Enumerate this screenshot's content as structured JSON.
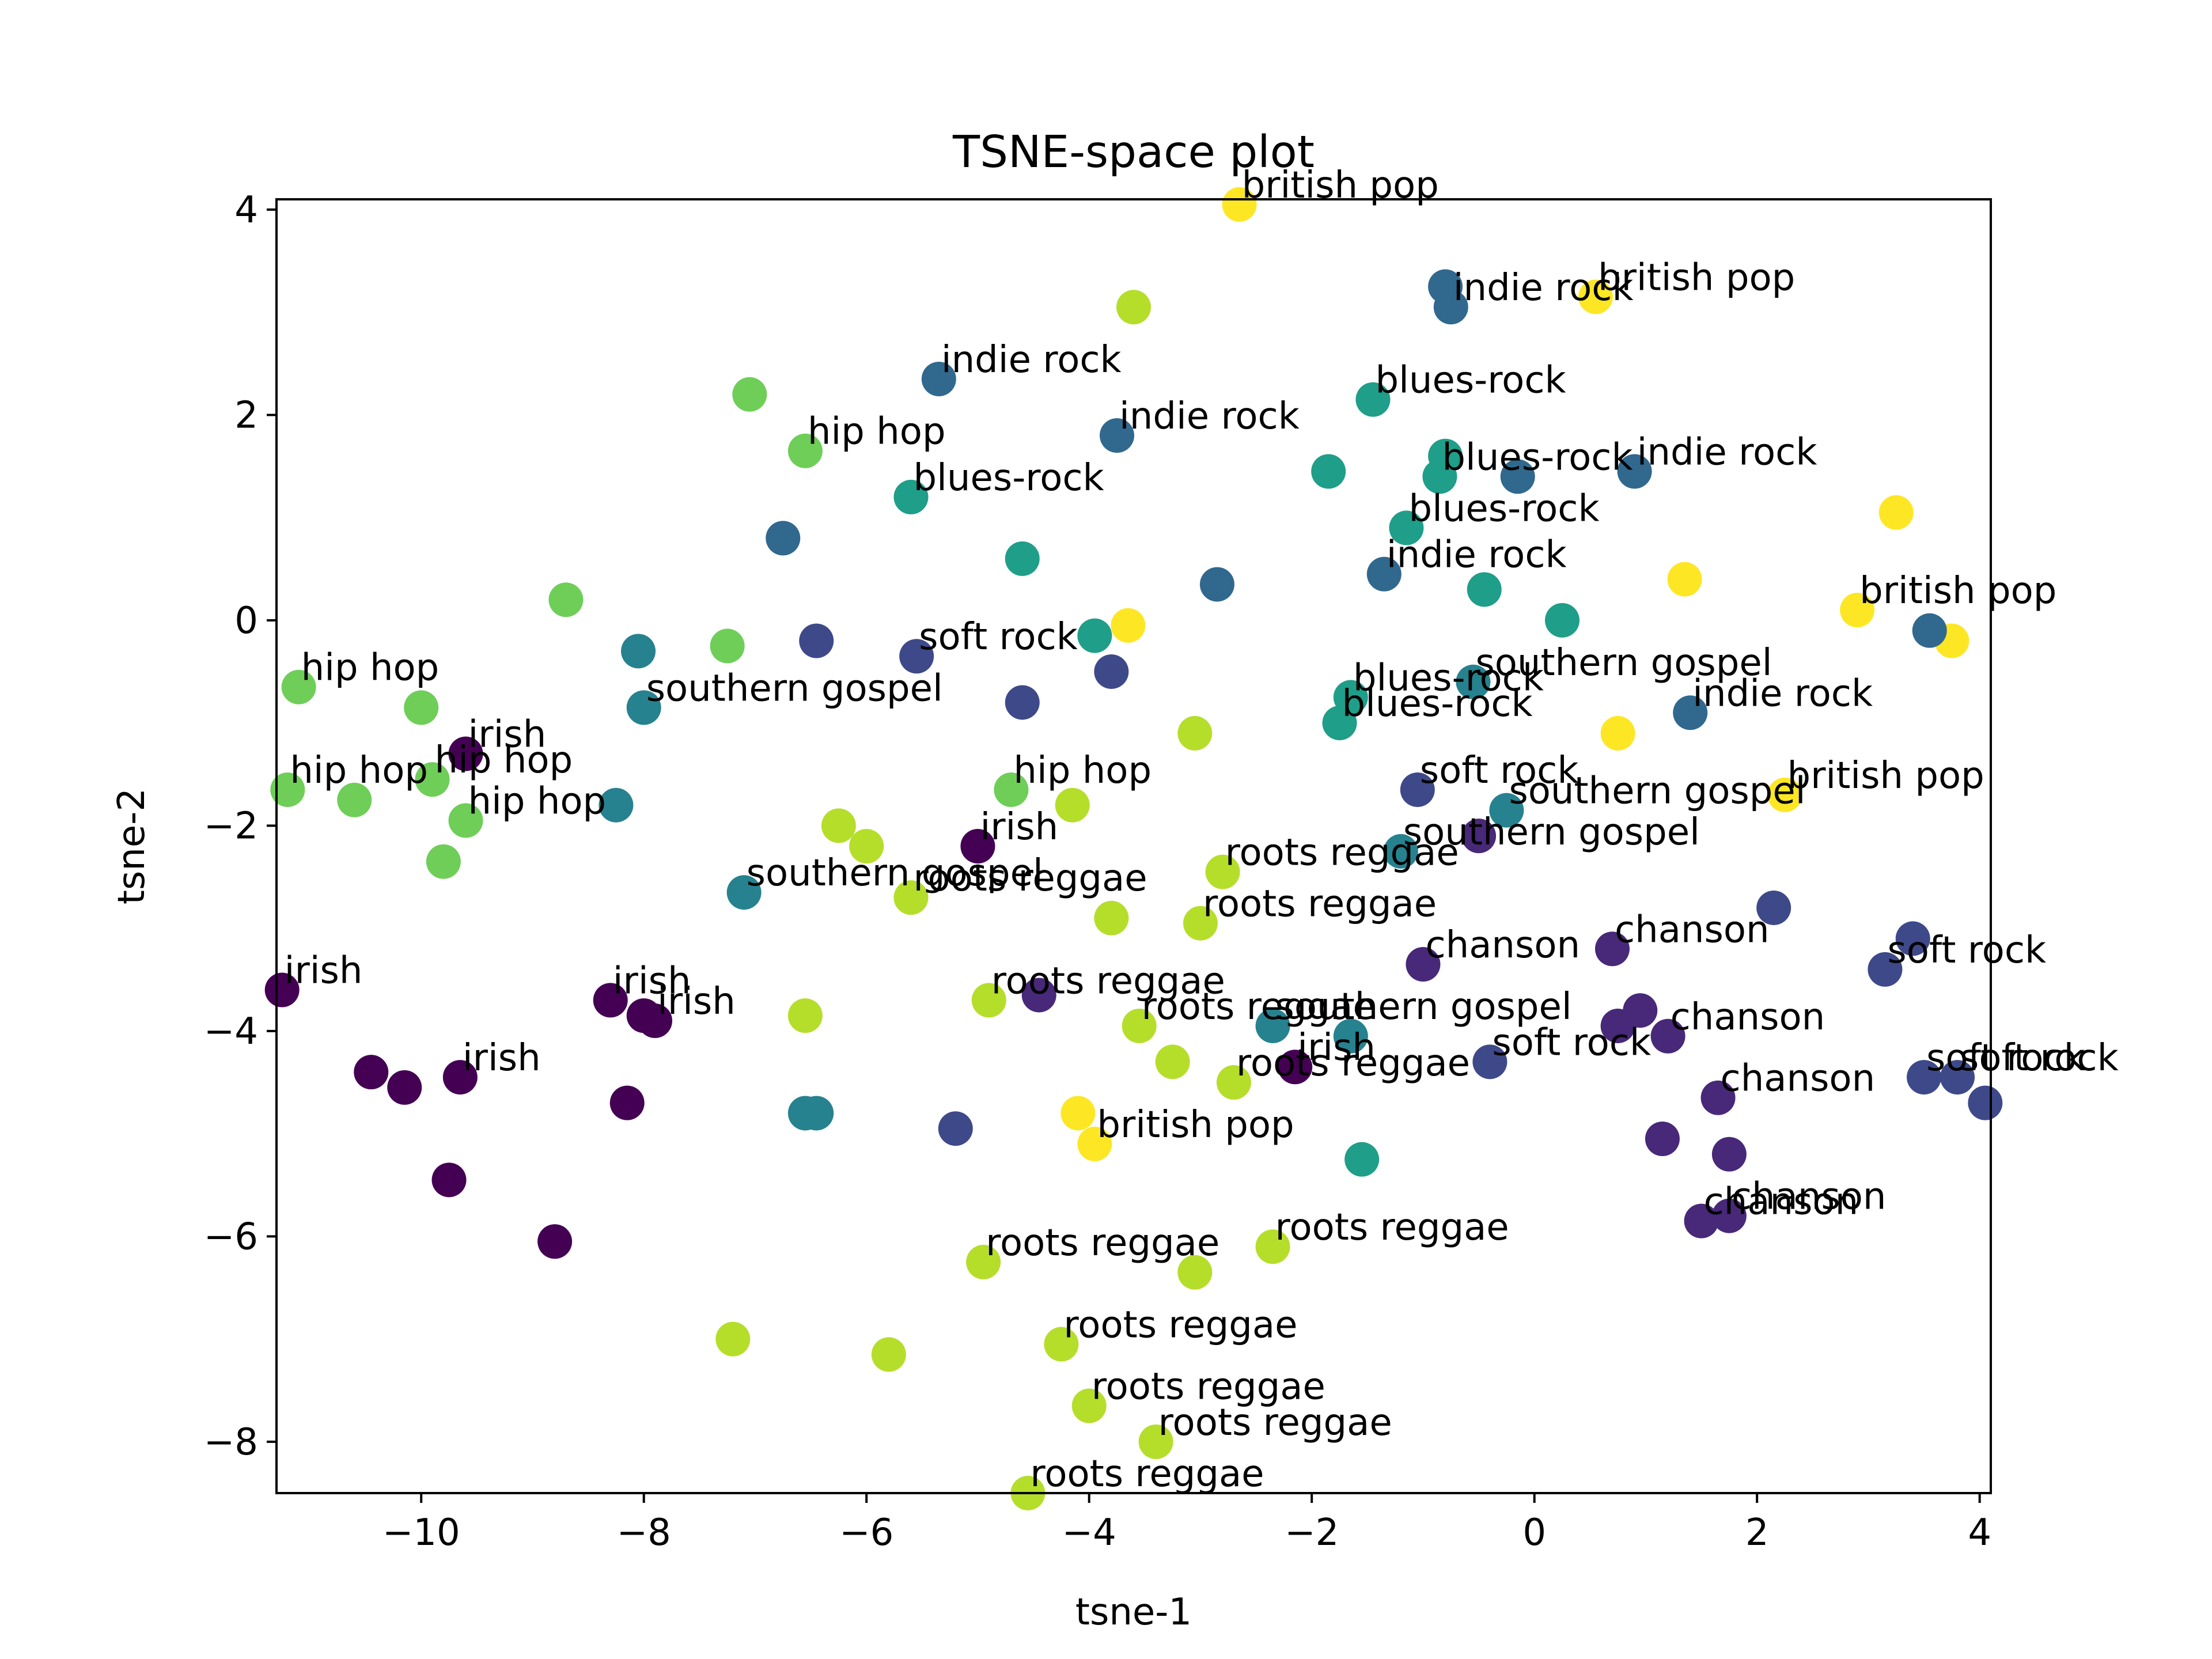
{
  "chart_data": {
    "type": "scatter",
    "title": "TSNE-space plot",
    "xlabel": "tsne-1",
    "ylabel": "tsne-2",
    "xlim": [
      -11.3,
      4.1
    ],
    "ylim": [
      -8.5,
      4.1
    ],
    "xticks": [
      -10,
      -8,
      -6,
      -4,
      -2,
      0,
      2,
      4
    ],
    "yticks": [
      -8,
      -6,
      -4,
      -2,
      0,
      2,
      4
    ],
    "grid": false,
    "colormap": "viridis",
    "genre_colors": {
      "irish": "#440154",
      "chanson": "#482878",
      "soft rock": "#3e4989",
      "indie rock": "#31688e",
      "southern gospel": "#26828e",
      "blues-rock": "#1f9e89",
      "hip hop": "#6ece58",
      "roots reggae": "#b5de2b",
      "british pop": "#fde725"
    },
    "points": [
      {
        "x": -2.65,
        "y": 4.05,
        "c": "#fde725",
        "label": "british pop"
      },
      {
        "x": 0.55,
        "y": 3.15,
        "c": "#fde725",
        "label": "british pop"
      },
      {
        "x": 3.25,
        "y": 1.05,
        "c": "#fde725",
        "label": ""
      },
      {
        "x": 1.35,
        "y": 0.4,
        "c": "#fde725",
        "label": ""
      },
      {
        "x": 2.9,
        "y": 0.1,
        "c": "#fde725",
        "label": "british pop"
      },
      {
        "x": 3.75,
        "y": -0.2,
        "c": "#fde725",
        "label": ""
      },
      {
        "x": -3.65,
        "y": -0.05,
        "c": "#fde725",
        "label": ""
      },
      {
        "x": 0.75,
        "y": -1.1,
        "c": "#fde725",
        "label": ""
      },
      {
        "x": 2.25,
        "y": -1.7,
        "c": "#fde725",
        "label": "british pop"
      },
      {
        "x": -4.1,
        "y": -4.8,
        "c": "#fde725",
        "label": ""
      },
      {
        "x": -3.95,
        "y": -5.1,
        "c": "#fde725",
        "label": "british pop"
      },
      {
        "x": -0.8,
        "y": 3.25,
        "c": "#31688e",
        "label": ""
      },
      {
        "x": -0.75,
        "y": 3.05,
        "c": "#31688e",
        "label": "indie rock"
      },
      {
        "x": -5.35,
        "y": 2.35,
        "c": "#31688e",
        "label": "indie rock"
      },
      {
        "x": -3.75,
        "y": 1.8,
        "c": "#31688e",
        "label": "indie rock"
      },
      {
        "x": 0.9,
        "y": 1.45,
        "c": "#31688e",
        "label": "indie rock"
      },
      {
        "x": -0.15,
        "y": 1.4,
        "c": "#31688e",
        "label": ""
      },
      {
        "x": -6.75,
        "y": 0.8,
        "c": "#31688e",
        "label": ""
      },
      {
        "x": -2.85,
        "y": 0.35,
        "c": "#31688e",
        "label": ""
      },
      {
        "x": -1.35,
        "y": 0.45,
        "c": "#31688e",
        "label": "indie rock"
      },
      {
        "x": 3.55,
        "y": -0.1,
        "c": "#31688e",
        "label": ""
      },
      {
        "x": 1.4,
        "y": -0.9,
        "c": "#31688e",
        "label": "indie rock"
      },
      {
        "x": -1.45,
        "y": 2.15,
        "c": "#1f9e89",
        "label": "blues-rock"
      },
      {
        "x": -1.85,
        "y": 1.45,
        "c": "#1f9e89",
        "label": ""
      },
      {
        "x": -0.8,
        "y": 1.6,
        "c": "#1f9e89",
        "label": ""
      },
      {
        "x": -0.85,
        "y": 1.4,
        "c": "#1f9e89",
        "label": "blues-rock"
      },
      {
        "x": -5.6,
        "y": 1.2,
        "c": "#1f9e89",
        "label": "blues-rock"
      },
      {
        "x": -1.15,
        "y": 0.9,
        "c": "#1f9e89",
        "label": "blues-rock"
      },
      {
        "x": -4.6,
        "y": 0.6,
        "c": "#1f9e89",
        "label": ""
      },
      {
        "x": -0.45,
        "y": 0.3,
        "c": "#1f9e89",
        "label": ""
      },
      {
        "x": 0.25,
        "y": 0.0,
        "c": "#1f9e89",
        "label": ""
      },
      {
        "x": -3.95,
        "y": -0.15,
        "c": "#1f9e89",
        "label": ""
      },
      {
        "x": -1.65,
        "y": -0.75,
        "c": "#1f9e89",
        "label": "blues-rock"
      },
      {
        "x": -1.75,
        "y": -1.0,
        "c": "#1f9e89",
        "label": "blues-rock"
      },
      {
        "x": -1.55,
        "y": -5.25,
        "c": "#1f9e89",
        "label": ""
      },
      {
        "x": -7.05,
        "y": 2.2,
        "c": "#6ece58",
        "label": ""
      },
      {
        "x": -6.55,
        "y": 1.65,
        "c": "#6ece58",
        "label": "hip hop"
      },
      {
        "x": -8.7,
        "y": 0.2,
        "c": "#6ece58",
        "label": ""
      },
      {
        "x": -7.25,
        "y": -0.25,
        "c": "#6ece58",
        "label": ""
      },
      {
        "x": -11.1,
        "y": -0.65,
        "c": "#6ece58",
        "label": "hip hop"
      },
      {
        "x": -10.0,
        "y": -0.85,
        "c": "#6ece58",
        "label": ""
      },
      {
        "x": -11.2,
        "y": -1.65,
        "c": "#6ece58",
        "label": "hip hop"
      },
      {
        "x": -10.6,
        "y": -1.75,
        "c": "#6ece58",
        "label": ""
      },
      {
        "x": -9.9,
        "y": -1.55,
        "c": "#6ece58",
        "label": "hip hop"
      },
      {
        "x": -9.6,
        "y": -1.95,
        "c": "#6ece58",
        "label": "hip hop"
      },
      {
        "x": -9.8,
        "y": -2.35,
        "c": "#6ece58",
        "label": ""
      },
      {
        "x": -4.7,
        "y": -1.65,
        "c": "#6ece58",
        "label": "hip hop"
      },
      {
        "x": -3.6,
        "y": 3.05,
        "c": "#b5de2b",
        "label": ""
      },
      {
        "x": -3.05,
        "y": -1.1,
        "c": "#b5de2b",
        "label": ""
      },
      {
        "x": -4.15,
        "y": -1.8,
        "c": "#b5de2b",
        "label": ""
      },
      {
        "x": -6.25,
        "y": -2.0,
        "c": "#b5de2b",
        "label": ""
      },
      {
        "x": -6.0,
        "y": -2.2,
        "c": "#b5de2b",
        "label": ""
      },
      {
        "x": -2.8,
        "y": -2.45,
        "c": "#b5de2b",
        "label": "roots reggae"
      },
      {
        "x": -5.6,
        "y": -2.7,
        "c": "#b5de2b",
        "label": "roots reggae"
      },
      {
        "x": -3.8,
        "y": -2.9,
        "c": "#b5de2b",
        "label": ""
      },
      {
        "x": -3.0,
        "y": -2.95,
        "c": "#b5de2b",
        "label": "roots reggae"
      },
      {
        "x": -4.9,
        "y": -3.7,
        "c": "#b5de2b",
        "label": "roots reggae"
      },
      {
        "x": -6.55,
        "y": -3.85,
        "c": "#b5de2b",
        "label": ""
      },
      {
        "x": -3.55,
        "y": -3.95,
        "c": "#b5de2b",
        "label": "roots reggae"
      },
      {
        "x": -3.25,
        "y": -4.3,
        "c": "#b5de2b",
        "label": ""
      },
      {
        "x": -2.7,
        "y": -4.5,
        "c": "#b5de2b",
        "label": "roots reggae"
      },
      {
        "x": -2.35,
        "y": -6.1,
        "c": "#b5de2b",
        "label": "roots reggae"
      },
      {
        "x": -4.95,
        "y": -6.25,
        "c": "#b5de2b",
        "label": "roots reggae"
      },
      {
        "x": -3.05,
        "y": -6.35,
        "c": "#b5de2b",
        "label": ""
      },
      {
        "x": -7.2,
        "y": -7.0,
        "c": "#b5de2b",
        "label": ""
      },
      {
        "x": -5.8,
        "y": -7.15,
        "c": "#b5de2b",
        "label": ""
      },
      {
        "x": -4.25,
        "y": -7.05,
        "c": "#b5de2b",
        "label": "roots reggae"
      },
      {
        "x": -4.0,
        "y": -7.65,
        "c": "#b5de2b",
        "label": "roots reggae"
      },
      {
        "x": -3.4,
        "y": -8.0,
        "c": "#b5de2b",
        "label": "roots reggae"
      },
      {
        "x": -4.55,
        "y": -8.5,
        "c": "#b5de2b",
        "label": "roots reggae"
      },
      {
        "x": -8.05,
        "y": -0.3,
        "c": "#26828e",
        "label": ""
      },
      {
        "x": -8.0,
        "y": -0.85,
        "c": "#26828e",
        "label": "southern gospel"
      },
      {
        "x": -8.25,
        "y": -1.8,
        "c": "#26828e",
        "label": ""
      },
      {
        "x": -7.1,
        "y": -2.65,
        "c": "#26828e",
        "label": "southern gospel"
      },
      {
        "x": -0.55,
        "y": -0.6,
        "c": "#26828e",
        "label": "southern gospel"
      },
      {
        "x": -0.25,
        "y": -1.85,
        "c": "#26828e",
        "label": "southern gospel"
      },
      {
        "x": -1.2,
        "y": -2.25,
        "c": "#26828e",
        "label": "southern gospel"
      },
      {
        "x": -2.35,
        "y": -3.95,
        "c": "#26828e",
        "label": "southern gospel"
      },
      {
        "x": -1.65,
        "y": -4.05,
        "c": "#26828e",
        "label": ""
      },
      {
        "x": -6.45,
        "y": -4.8,
        "c": "#26828e",
        "label": ""
      },
      {
        "x": -6.55,
        "y": -4.8,
        "c": "#26828e",
        "label": ""
      },
      {
        "x": -6.45,
        "y": -0.2,
        "c": "#3e4989",
        "label": ""
      },
      {
        "x": -5.55,
        "y": -0.35,
        "c": "#3e4989",
        "label": "soft rock"
      },
      {
        "x": -3.8,
        "y": -0.5,
        "c": "#3e4989",
        "label": ""
      },
      {
        "x": -4.6,
        "y": -0.8,
        "c": "#3e4989",
        "label": ""
      },
      {
        "x": -1.05,
        "y": -1.65,
        "c": "#3e4989",
        "label": "soft rock"
      },
      {
        "x": 2.15,
        "y": -2.8,
        "c": "#3e4989",
        "label": ""
      },
      {
        "x": 3.4,
        "y": -3.1,
        "c": "#3e4989",
        "label": ""
      },
      {
        "x": 3.15,
        "y": -3.4,
        "c": "#3e4989",
        "label": "soft rock"
      },
      {
        "x": -0.4,
        "y": -4.3,
        "c": "#3e4989",
        "label": "soft rock"
      },
      {
        "x": 3.5,
        "y": -4.45,
        "c": "#3e4989",
        "label": "soft rock"
      },
      {
        "x": 3.8,
        "y": -4.45,
        "c": "#3e4989",
        "label": "soft rock"
      },
      {
        "x": 4.05,
        "y": -4.7,
        "c": "#3e4989",
        "label": ""
      },
      {
        "x": -5.2,
        "y": -4.95,
        "c": "#3e4989",
        "label": ""
      },
      {
        "x": -0.5,
        "y": -2.1,
        "c": "#482878",
        "label": ""
      },
      {
        "x": -1.0,
        "y": -3.35,
        "c": "#482878",
        "label": "chanson"
      },
      {
        "x": 0.7,
        "y": -3.2,
        "c": "#482878",
        "label": "chanson"
      },
      {
        "x": -4.45,
        "y": -3.65,
        "c": "#482878",
        "label": ""
      },
      {
        "x": 0.95,
        "y": -3.8,
        "c": "#482878",
        "label": ""
      },
      {
        "x": 0.75,
        "y": -3.95,
        "c": "#482878",
        "label": ""
      },
      {
        "x": 1.2,
        "y": -4.05,
        "c": "#482878",
        "label": "chanson"
      },
      {
        "x": 1.65,
        "y": -4.65,
        "c": "#482878",
        "label": "chanson"
      },
      {
        "x": 1.15,
        "y": -5.05,
        "c": "#482878",
        "label": ""
      },
      {
        "x": 1.75,
        "y": -5.2,
        "c": "#482878",
        "label": ""
      },
      {
        "x": 1.5,
        "y": -5.85,
        "c": "#482878",
        "label": "chanson"
      },
      {
        "x": 1.75,
        "y": -5.8,
        "c": "#482878",
        "label": "chanson"
      },
      {
        "x": -9.6,
        "y": -1.3,
        "c": "#440154",
        "label": "irish"
      },
      {
        "x": -5.0,
        "y": -2.2,
        "c": "#440154",
        "label": "irish"
      },
      {
        "x": -11.25,
        "y": -3.6,
        "c": "#440154",
        "label": "irish"
      },
      {
        "x": -8.3,
        "y": -3.7,
        "c": "#440154",
        "label": "irish"
      },
      {
        "x": -8.0,
        "y": -3.85,
        "c": "#440154",
        "label": ""
      },
      {
        "x": -7.9,
        "y": -3.9,
        "c": "#440154",
        "label": "irish"
      },
      {
        "x": -10.45,
        "y": -4.4,
        "c": "#440154",
        "label": ""
      },
      {
        "x": -10.15,
        "y": -4.55,
        "c": "#440154",
        "label": ""
      },
      {
        "x": -9.65,
        "y": -4.45,
        "c": "#440154",
        "label": "irish"
      },
      {
        "x": -2.15,
        "y": -4.35,
        "c": "#440154",
        "label": "irish"
      },
      {
        "x": -8.15,
        "y": -4.7,
        "c": "#440154",
        "label": ""
      },
      {
        "x": -9.75,
        "y": -5.45,
        "c": "#440154",
        "label": ""
      },
      {
        "x": -8.8,
        "y": -6.05,
        "c": "#440154",
        "label": ""
      }
    ]
  }
}
